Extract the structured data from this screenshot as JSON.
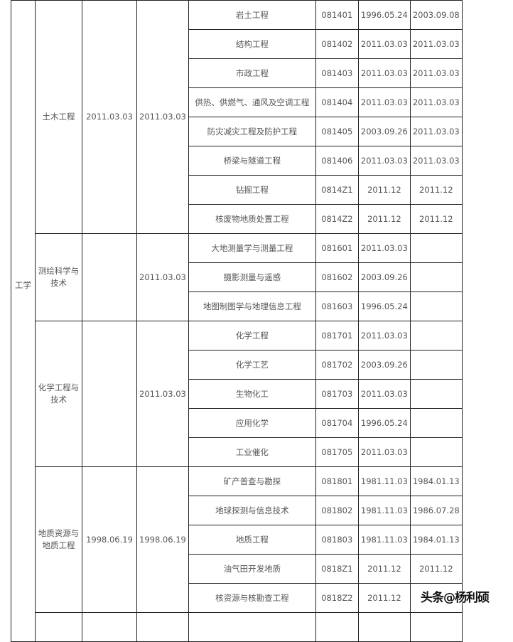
{
  "discipline": "工学",
  "groups": [
    {
      "name": "土木工程",
      "date1": "2011.03.03",
      "date2": "2011.03.03",
      "rows": [
        [
          "岩土工程",
          "081401",
          "1996.05.24",
          "2003.09.08"
        ],
        [
          "结构工程",
          "081402",
          "2011.03.03",
          "2011.03.03"
        ],
        [
          "市政工程",
          "081403",
          "2011.03.03",
          "2011.03.03"
        ],
        [
          "供热、供燃气、通风及空调工程",
          "081404",
          "2011.03.03",
          "2011.03.03"
        ],
        [
          "防灾减灾工程及防护工程",
          "081405",
          "2003.09.26",
          "2011.03.03"
        ],
        [
          "桥梁与隧道工程",
          "081406",
          "2011.03.03",
          "2011.03.03"
        ],
        [
          "钻掘工程",
          "0814Z1",
          "2011.12",
          "2011.12"
        ],
        [
          "核废物地质处置工程",
          "0814Z2",
          "2011.12",
          "2011.12"
        ]
      ]
    },
    {
      "name": "测绘科学与技术",
      "date1": "",
      "date2": "2011.03.03",
      "rows": [
        [
          "大地测量学与测量工程",
          "081601",
          "2011.03.03",
          ""
        ],
        [
          "摄影测量与遥感",
          "081602",
          "2003.09.26",
          ""
        ],
        [
          "地图制图学与地理信息工程",
          "081603",
          "1996.05.24",
          ""
        ]
      ]
    },
    {
      "name": "化学工程与技术",
      "date1": "",
      "date2": "2011.03.03",
      "rows": [
        [
          "化学工程",
          "081701",
          "2011.03.03",
          ""
        ],
        [
          "化学工艺",
          "081702",
          "2003.09.26",
          ""
        ],
        [
          "生物化工",
          "081703",
          "2011.03.03",
          ""
        ],
        [
          "应用化学",
          "081704",
          "1996.05.24",
          ""
        ],
        [
          "工业催化",
          "081705",
          "2011.03.03",
          ""
        ]
      ]
    },
    {
      "name": "地质资源与地质工程",
      "date1": "1998.06.19",
      "date2": "1998.06.19",
      "rows": [
        [
          "矿产普查与勘探",
          "081801",
          "1981.11.03",
          "1984.01.13"
        ],
        [
          "地球探测与信息技术",
          "081802",
          "1981.11.03",
          "1986.07.28"
        ],
        [
          "地质工程",
          "081803",
          "1981.11.03",
          "1984.01.13"
        ],
        [
          "油气田开发地质",
          "0818Z1",
          "2011.12",
          "2011.12"
        ],
        [
          "核资源与核勘查工程",
          "0818Z2",
          "2011.12",
          ""
        ]
      ]
    }
  ],
  "watermark": "头条@杨利硕"
}
